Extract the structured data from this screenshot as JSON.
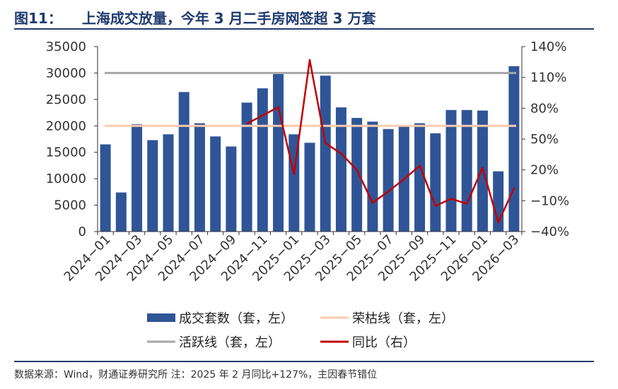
{
  "header": {
    "figure_no": "图11：",
    "title": "上海成交放量，今年 3 月二手房网签超 3 万套"
  },
  "footer": {
    "source": "数据来源：Wind，财通证券研究所 注：2025 年 2 月同比+127%，主因春节错位"
  },
  "colors": {
    "bar": "#2f5597",
    "yoy": "#c00000",
    "prosperity": "#f8cbad",
    "active": "#a6a6a6",
    "title": "#1f3b70"
  },
  "chart_data": {
    "type": "bar",
    "title": "上海成交放量，今年 3 月二手房网签超 3 万套",
    "categories": [
      "2024-01",
      "2024-02",
      "2024-03",
      "2024-04",
      "2024-05",
      "2024-06",
      "2024-07",
      "2024-08",
      "2024-09",
      "2024-10",
      "2024-11",
      "2024-12",
      "2025-01",
      "2025-02",
      "2025-03",
      "2025-04",
      "2025-05",
      "2025-06",
      "2025-07",
      "2025-08",
      "2025-09",
      "2025-10",
      "2025-11",
      "2025-12",
      "2026-01",
      "2026-02",
      "2026-03"
    ],
    "x_tick_labels": [
      "2024−01",
      "2024−03",
      "2024−05",
      "2024−07",
      "2024−09",
      "2024−11",
      "2025−01",
      "2025−03",
      "2025−05",
      "2025−07",
      "2025−09",
      "2025−11",
      "2026−01",
      "2026−03"
    ],
    "series": [
      {
        "name": "成交套数（套，左）",
        "type": "bar",
        "axis": "left",
        "values": [
          16500,
          7400,
          20300,
          17300,
          18400,
          26400,
          20500,
          18000,
          16100,
          24400,
          27100,
          29800,
          18400,
          16800,
          29500,
          23500,
          21500,
          20800,
          19400,
          19900,
          20500,
          18600,
          23000,
          23000,
          22900,
          11400,
          31300
        ]
      },
      {
        "name": "荣枯线（套，左）",
        "type": "hline",
        "axis": "left",
        "value": 20000
      },
      {
        "name": "活跃线（套，左）",
        "type": "hline",
        "axis": "left",
        "value": 30000
      },
      {
        "name": "同比（右）",
        "type": "line",
        "axis": "right",
        "values": [
          null,
          null,
          null,
          null,
          null,
          null,
          null,
          null,
          null,
          65,
          73,
          81,
          16,
          127,
          46,
          36,
          20,
          -12,
          -1,
          11,
          24,
          -15,
          -8,
          -13,
          22,
          -31,
          2
        ]
      }
    ],
    "left_axis": {
      "ylim": [
        0,
        35000
      ],
      "ticks": [
        0,
        5000,
        10000,
        15000,
        20000,
        25000,
        30000,
        35000
      ]
    },
    "right_axis": {
      "ylim": [
        -40,
        140
      ],
      "ticks": [
        "-40%",
        "-10%",
        "20%",
        "50%",
        "80%",
        "110%",
        "140%"
      ],
      "tick_values": [
        -40,
        -10,
        20,
        50,
        80,
        110,
        140
      ]
    },
    "legend": {
      "position": "bottom",
      "items": [
        "成交套数（套，左）",
        "荣枯线（套，左）",
        "活跃线（套，左）",
        "同比（右）"
      ]
    }
  }
}
